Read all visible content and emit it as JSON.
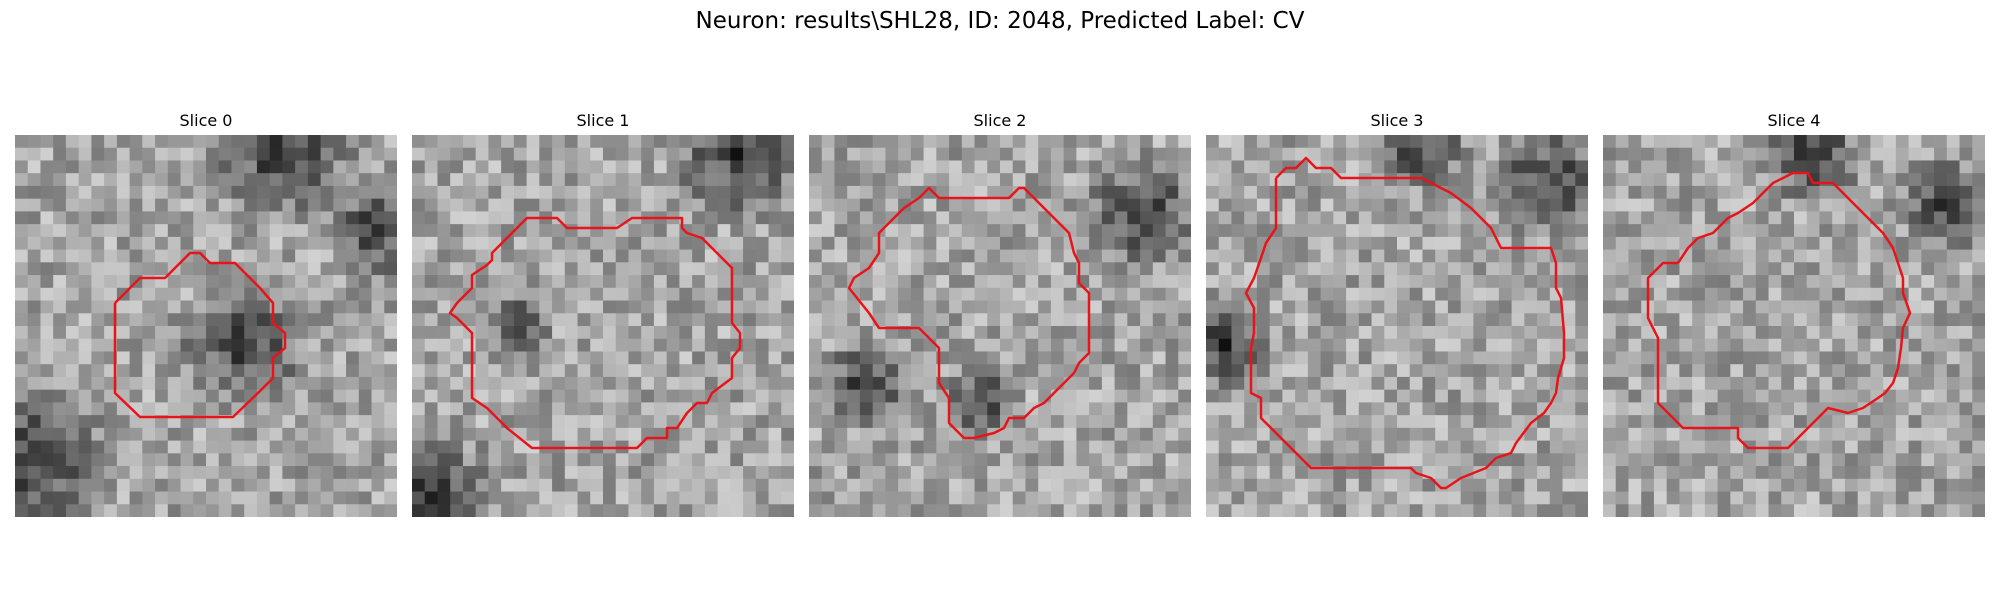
{
  "figure": {
    "title": "Neuron: results\\SHL28, ID: 2048, Predicted Label: CV"
  },
  "slices": [
    {
      "title": "Slice 0",
      "seed": 11,
      "dark": [
        [
          0.7,
          0.05,
          0.22
        ],
        [
          0.95,
          0.25,
          0.15
        ],
        [
          0.05,
          0.85,
          0.25
        ],
        [
          0.6,
          0.55,
          0.2
        ]
      ]
    },
    {
      "title": "Slice 1",
      "seed": 23,
      "dark": [
        [
          0.85,
          0.05,
          0.2
        ],
        [
          0.28,
          0.5,
          0.09
        ],
        [
          0.05,
          0.95,
          0.2
        ]
      ]
    },
    {
      "title": "Slice 2",
      "seed": 37,
      "dark": [
        [
          0.88,
          0.2,
          0.18
        ],
        [
          0.15,
          0.65,
          0.14
        ],
        [
          0.45,
          0.7,
          0.12
        ]
      ]
    },
    {
      "title": "Slice 3",
      "seed": 41,
      "dark": [
        [
          0.9,
          0.12,
          0.18
        ],
        [
          0.05,
          0.55,
          0.14
        ],
        [
          0.55,
          0.02,
          0.15
        ]
      ]
    },
    {
      "title": "Slice 4",
      "seed": 59,
      "dark": [
        [
          0.9,
          0.18,
          0.14
        ],
        [
          0.55,
          0.05,
          0.15
        ]
      ]
    }
  ],
  "colors": {
    "contour": "#e8141a",
    "background": "#ffffff"
  }
}
